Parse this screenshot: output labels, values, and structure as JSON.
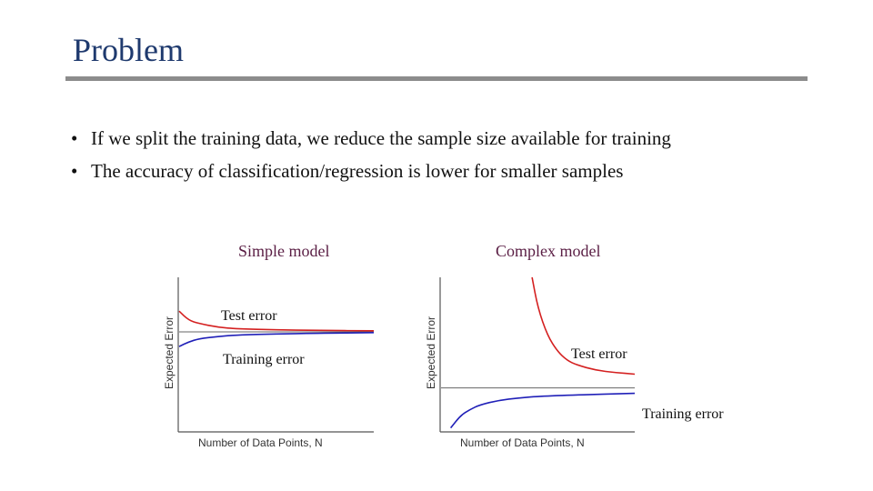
{
  "slide": {
    "title": "Problem",
    "bullets": [
      "If we split the training data, we reduce the sample size available for training",
      "The accuracy of classification/regression is lower for smaller samples"
    ],
    "bullet_symbol": "•"
  },
  "chart_data": [
    {
      "type": "line",
      "caption": "Simple model",
      "xlabel": "Number of Data Points, N",
      "ylabel": "Expected Error",
      "series": [
        {
          "name": "Test error",
          "color": "#d42020",
          "x": [
            0,
            0.05,
            0.1,
            0.2,
            0.3,
            0.5,
            0.7,
            1.0
          ],
          "values": [
            0.78,
            0.72,
            0.7,
            0.675,
            0.665,
            0.658,
            0.655,
            0.652
          ]
        },
        {
          "name": "Training error",
          "color": "#2020b8",
          "x": [
            0,
            0.05,
            0.1,
            0.2,
            0.3,
            0.5,
            0.7,
            1.0
          ],
          "values": [
            0.55,
            0.58,
            0.6,
            0.615,
            0.625,
            0.632,
            0.636,
            0.64
          ]
        }
      ],
      "asymptote": 0.645
    },
    {
      "type": "line",
      "caption": "Complex model",
      "xlabel": "Number of Data Points, N",
      "ylabel": "Expected Error",
      "series": [
        {
          "name": "Test error",
          "color": "#d42020",
          "x": [
            0.47,
            0.5,
            0.55,
            0.6,
            0.65,
            0.7,
            0.8,
            0.9,
            1.0
          ],
          "values": [
            1.0,
            0.8,
            0.62,
            0.52,
            0.46,
            0.43,
            0.395,
            0.38,
            0.37
          ]
        },
        {
          "name": "Training error",
          "color": "#2020b8",
          "x": [
            0.05,
            0.1,
            0.15,
            0.2,
            0.3,
            0.4,
            0.5,
            0.7,
            1.0
          ],
          "values": [
            0.02,
            0.1,
            0.14,
            0.17,
            0.2,
            0.215,
            0.225,
            0.235,
            0.245
          ]
        }
      ],
      "asymptote": 0.28
    }
  ]
}
